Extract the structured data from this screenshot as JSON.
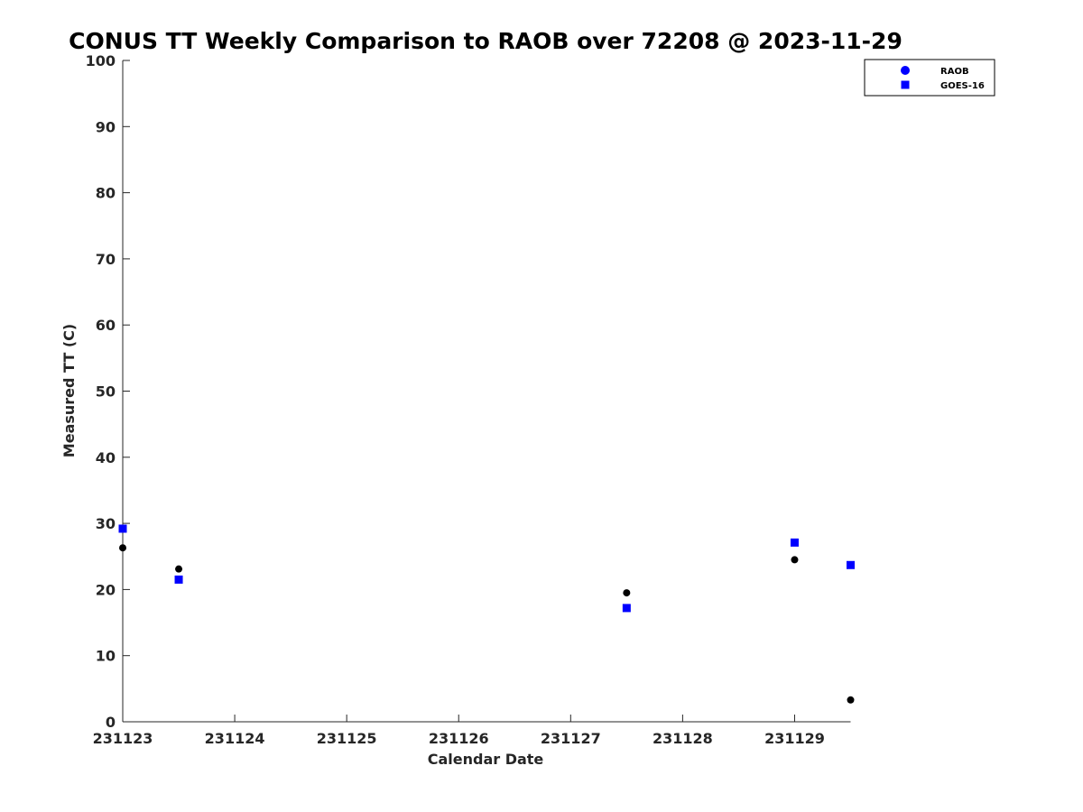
{
  "chart_data": {
    "type": "scatter",
    "title": "CONUS TT Weekly Comparison to RAOB over 72208 @ 2023-11-29",
    "xlabel": "Calendar Date",
    "ylabel": "Measured TT (C)",
    "xlim": [
      0,
      6.5
    ],
    "ylim": [
      0,
      100
    ],
    "x_ticks": [
      {
        "value": 0,
        "label": "231123"
      },
      {
        "value": 1,
        "label": "231124"
      },
      {
        "value": 2,
        "label": "231125"
      },
      {
        "value": 3,
        "label": "231126"
      },
      {
        "value": 4,
        "label": "231127"
      },
      {
        "value": 5,
        "label": "231128"
      },
      {
        "value": 6,
        "label": "231129"
      }
    ],
    "y_ticks": [
      0,
      10,
      20,
      30,
      40,
      50,
      60,
      70,
      80,
      90,
      100
    ],
    "grid": false,
    "legend_position": "top-right",
    "series": [
      {
        "name": "RAOB",
        "marker": "circle",
        "color": "#000000",
        "legend_color": "#0000ff",
        "points": [
          {
            "x": 0.0,
            "y": 26.3
          },
          {
            "x": 0.5,
            "y": 23.1
          },
          {
            "x": 4.5,
            "y": 19.5
          },
          {
            "x": 6.0,
            "y": 24.5
          },
          {
            "x": 6.5,
            "y": 3.3
          }
        ]
      },
      {
        "name": "GOES-16",
        "marker": "square",
        "color": "#0000ff",
        "legend_color": "#0000ff",
        "points": [
          {
            "x": 0.0,
            "y": 29.2
          },
          {
            "x": 0.5,
            "y": 21.5
          },
          {
            "x": 4.5,
            "y": 17.2
          },
          {
            "x": 6.0,
            "y": 27.1
          },
          {
            "x": 6.5,
            "y": 23.7
          }
        ]
      }
    ]
  }
}
